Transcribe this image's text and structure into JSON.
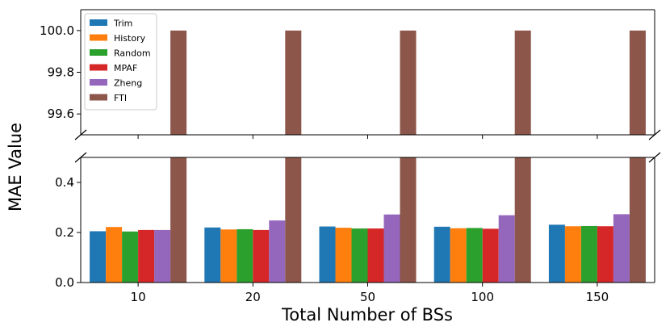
{
  "chart_data": {
    "type": "bar",
    "broken_axis": true,
    "xlabel": "Total Number of BSs",
    "ylabel": "MAE Value",
    "categories": [
      "10",
      "20",
      "50",
      "100",
      "150"
    ],
    "series": [
      {
        "name": "Trim",
        "color": "#1f77b4",
        "values": [
          0.205,
          0.22,
          0.224,
          0.223,
          0.231
        ]
      },
      {
        "name": "History",
        "color": "#ff7f0e",
        "values": [
          0.222,
          0.212,
          0.219,
          0.217,
          0.225
        ]
      },
      {
        "name": "Random",
        "color": "#2ca02c",
        "values": [
          0.204,
          0.213,
          0.216,
          0.218,
          0.226
        ]
      },
      {
        "name": "MPAF",
        "color": "#d62728",
        "values": [
          0.21,
          0.21,
          0.216,
          0.215,
          0.225
        ]
      },
      {
        "name": "Zheng",
        "color": "#9467bd",
        "values": [
          0.21,
          0.248,
          0.272,
          0.269,
          0.273
        ]
      },
      {
        "name": "FTI",
        "color": "#8c564b",
        "values": [
          100.0,
          100.0,
          100.0,
          100.0,
          100.0
        ]
      }
    ],
    "upper_ylim": [
      99.5,
      100.1
    ],
    "upper_yticks": [
      "99.6",
      "99.8",
      "100.0"
    ],
    "lower_ylim": [
      0.0,
      0.5
    ],
    "lower_yticks": [
      "0.0",
      "0.2",
      "0.4"
    ],
    "legend_position": "top-left",
    "grid": false
  }
}
